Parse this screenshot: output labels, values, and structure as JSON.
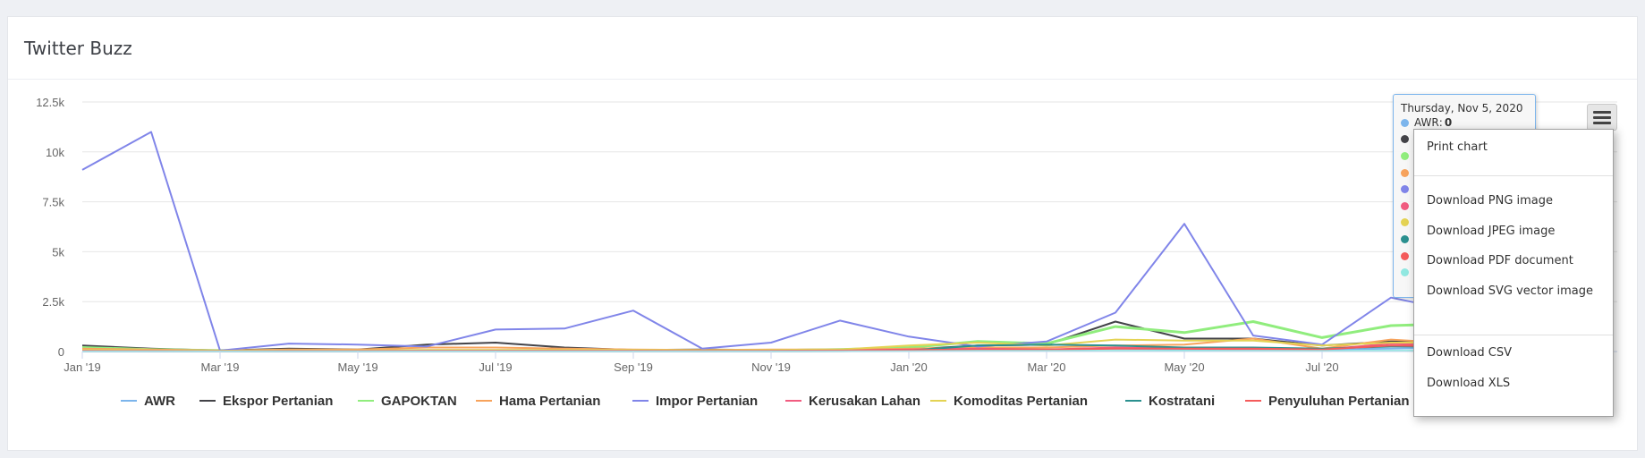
{
  "card": {
    "title": "Twitter Buzz"
  },
  "chart_data": {
    "type": "line",
    "title": "Twitter Buzz",
    "x_axis_type": "datetime",
    "x": [
      "2019-01",
      "2019-02",
      "2019-03",
      "2019-04",
      "2019-05",
      "2019-06",
      "2019-07",
      "2019-08",
      "2019-09",
      "2019-10",
      "2019-11",
      "2019-12",
      "2020-01",
      "2020-02",
      "2020-03",
      "2020-04",
      "2020-05",
      "2020-06",
      "2020-07",
      "2020-08",
      "2020-09"
    ],
    "x_tick_labels": [
      "Jan '19",
      "Mar '19",
      "May '19",
      "Jul '19",
      "Sep '19",
      "Nov '19",
      "Jan '20",
      "Mar '20",
      "May '20",
      "Jul '20"
    ],
    "y_tick_labels": [
      "0",
      "2.5k",
      "5k",
      "7.5k",
      "10k",
      "12.5k"
    ],
    "ylim": [
      0,
      12500
    ],
    "grid": true,
    "legend_position": "bottom",
    "series": [
      {
        "name": "AWR",
        "color": "#7cb5ec",
        "values": [
          20,
          10,
          5,
          10,
          10,
          20,
          20,
          20,
          20,
          20,
          20,
          30,
          50,
          60,
          80,
          150,
          100,
          80,
          100,
          150,
          200
        ]
      },
      {
        "name": "Ekspor Pertanian",
        "color": "#434348",
        "values": [
          300,
          150,
          50,
          150,
          100,
          350,
          450,
          200,
          80,
          100,
          80,
          100,
          100,
          300,
          350,
          1500,
          650,
          650,
          300,
          500,
          500
        ]
      },
      {
        "name": "GAPOKTAN",
        "color": "#90ed7d",
        "values": [
          200,
          100,
          50,
          50,
          50,
          50,
          50,
          50,
          50,
          50,
          50,
          100,
          200,
          500,
          400,
          1250,
          950,
          1500,
          700,
          1300,
          1400
        ]
      },
      {
        "name": "Hama Pertanian",
        "color": "#f7a35c",
        "values": [
          150,
          100,
          50,
          100,
          100,
          200,
          200,
          150,
          100,
          80,
          100,
          100,
          150,
          200,
          200,
          300,
          350,
          650,
          150,
          600,
          400
        ]
      },
      {
        "name": "Impor Pertanian",
        "color": "#8085e9",
        "values": [
          9100,
          11000,
          50,
          400,
          350,
          250,
          1100,
          1150,
          2050,
          150,
          450,
          1550,
          750,
          250,
          500,
          1950,
          6400,
          800,
          350,
          2700,
          2000
        ]
      },
      {
        "name": "Kerusakan Lahan",
        "color": "#f15c80",
        "values": [
          30,
          20,
          10,
          20,
          20,
          30,
          30,
          30,
          30,
          20,
          30,
          50,
          100,
          150,
          100,
          200,
          150,
          100,
          100,
          400,
          300
        ]
      },
      {
        "name": "Komoditas Pertanian",
        "color": "#e4d354",
        "values": [
          80,
          60,
          40,
          60,
          60,
          80,
          80,
          80,
          80,
          60,
          80,
          100,
          300,
          450,
          300,
          600,
          550,
          550,
          300,
          450,
          450
        ]
      },
      {
        "name": "Kostratani",
        "color": "#2b908f",
        "values": [
          10,
          10,
          5,
          10,
          10,
          10,
          10,
          10,
          10,
          10,
          10,
          20,
          50,
          300,
          350,
          300,
          200,
          200,
          150,
          250,
          250
        ]
      },
      {
        "name": "Penyuluhan Pertanian",
        "color": "#f45b5b",
        "values": [
          40,
          30,
          20,
          30,
          30,
          40,
          40,
          40,
          40,
          30,
          40,
          50,
          80,
          100,
          100,
          150,
          150,
          150,
          100,
          300,
          250
        ]
      },
      {
        "name": "",
        "color": "#91e8e1",
        "values": [
          10,
          10,
          5,
          10,
          10,
          10,
          10,
          10,
          10,
          10,
          10,
          10,
          20,
          30,
          30,
          40,
          40,
          40,
          30,
          40,
          40
        ]
      }
    ]
  },
  "tooltip": {
    "date": "Thursday, Nov 5, 2020",
    "first_label": "AWR",
    "first_value": "0",
    "dot_colors": [
      "#7cb5ec",
      "#434348",
      "#90ed7d",
      "#f7a35c",
      "#8085e9",
      "#f15c80",
      "#e4d354",
      "#2b908f",
      "#f45b5b",
      "#91e8e1"
    ]
  },
  "export_menu": {
    "icon": "hamburger-menu-icon",
    "print": "Print chart",
    "png": "Download PNG image",
    "jpeg": "Download JPEG image",
    "pdf": "Download PDF document",
    "svg": "Download SVG vector image",
    "csv": "Download CSV",
    "xls": "Download XLS"
  }
}
